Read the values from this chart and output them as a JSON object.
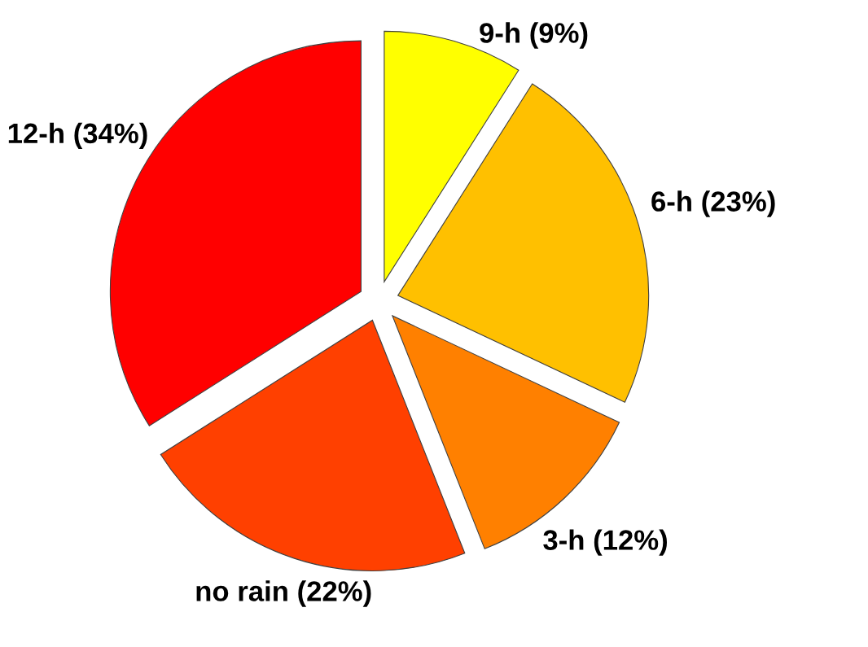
{
  "chart_data": {
    "type": "pie",
    "categories": [
      "9-h (9%)",
      "6-h (23%)",
      "3-h (12%)",
      "no rain (22%)",
      "12-h (34%)"
    ],
    "values": [
      9,
      23,
      12,
      22,
      34
    ],
    "colors": [
      "#ffff00",
      "#ffc000",
      "#ff8000",
      "#ff4000",
      "#ff0000"
    ]
  }
}
